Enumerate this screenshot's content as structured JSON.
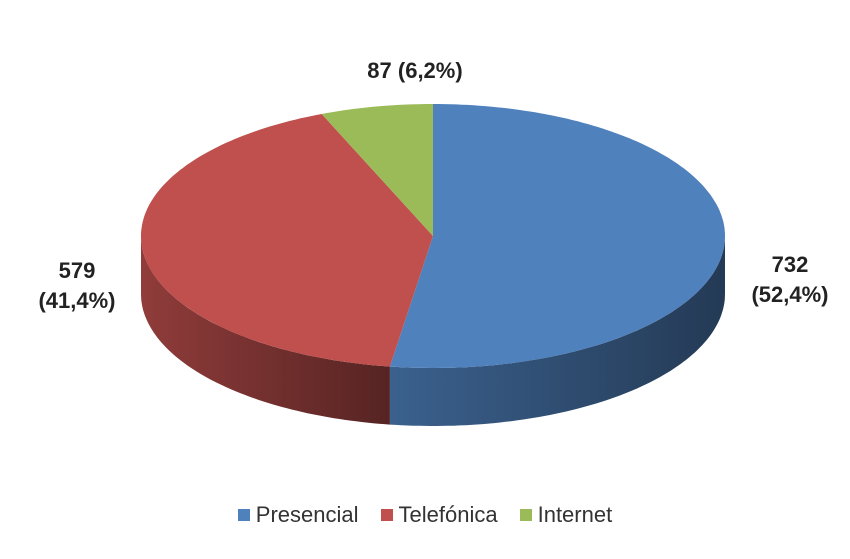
{
  "chart_data": {
    "type": "pie",
    "categories": [
      "Presencial",
      "Telefónica",
      "Internet"
    ],
    "values": [
      732,
      579,
      87
    ],
    "value_labels": [
      "732 (52,4%)",
      "579 (41,4%)",
      "87 (6,2%)"
    ],
    "colors": [
      "#4f81bd",
      "#c0504d",
      "#9bbb59"
    ],
    "legend": "bottom"
  }
}
